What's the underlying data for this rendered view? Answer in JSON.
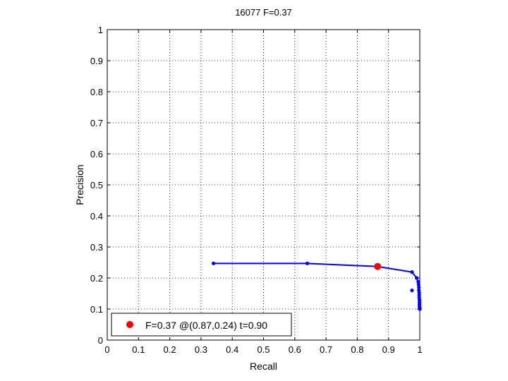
{
  "chart_data": {
    "type": "line",
    "title": "16077 F=0.37",
    "xlabel": "Recall",
    "ylabel": "Precision",
    "xlim": [
      0,
      1
    ],
    "ylim": [
      0,
      1
    ],
    "grid": true,
    "xticks": [
      "0",
      "0.1",
      "0.2",
      "0.3",
      "0.4",
      "0.5",
      "0.6",
      "0.7",
      "0.8",
      "0.9",
      "1"
    ],
    "yticks": [
      "0",
      "0.1",
      "0.2",
      "0.3",
      "0.4",
      "0.5",
      "0.6",
      "0.7",
      "0.8",
      "0.9",
      "1"
    ],
    "series": [
      {
        "x": [
          0.34,
          0.64,
          0.865,
          0.975,
          0.99,
          0.995,
          0.996,
          0.997,
          0.997,
          0.998,
          0.998,
          0.998,
          0.999,
          0.999,
          0.999,
          0.999,
          1.0,
          1.0
        ],
        "y": [
          0.247,
          0.247,
          0.237,
          0.219,
          0.2,
          0.188,
          0.179,
          0.17,
          0.161,
          0.153,
          0.145,
          0.137,
          0.129,
          0.121,
          0.114,
          0.107,
          0.102,
          0.1
        ],
        "color": "#0000ff"
      }
    ],
    "extra_points": [
      {
        "x": 0.975,
        "y": 0.16,
        "color": "#0000ff"
      }
    ],
    "best_point": {
      "x": 0.865,
      "y": 0.237,
      "color": "#ff0000"
    },
    "legend": {
      "location": "bottom-left",
      "text": "F=0.37 @(0.87,0.24) t=0.90"
    }
  }
}
